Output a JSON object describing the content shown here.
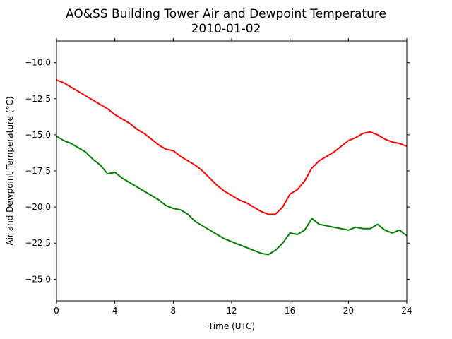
{
  "chart_data": {
    "type": "line",
    "title": "AO&SS Building Tower Air and Dewpoint Temperature",
    "subtitle": "2010-01-02",
    "xlabel": "Time (UTC)",
    "ylabel": "Air and Dewpoint Temperature (°C)",
    "xlim": [
      0,
      24
    ],
    "ylim": [
      -26.5,
      -8.5
    ],
    "xticks": [
      0,
      4,
      8,
      12,
      16,
      20,
      24
    ],
    "xtick_labels": [
      "0",
      "4",
      "8",
      "12",
      "16",
      "20",
      "24"
    ],
    "yticks": [
      -10.0,
      -12.5,
      -15.0,
      -17.5,
      -20.0,
      -22.5,
      -25.0
    ],
    "ytick_labels": [
      "−10.0",
      "−12.5",
      "−15.0",
      "−17.5",
      "−20.0",
      "−22.5",
      "−25.0"
    ],
    "grid": false,
    "series": [
      {
        "color": "#ff0000",
        "x": [
          0,
          0.5,
          1,
          1.5,
          2,
          2.5,
          3,
          3.5,
          4,
          4.5,
          5,
          5.5,
          6,
          6.5,
          7,
          7.5,
          8,
          8.5,
          9,
          9.5,
          10,
          10.5,
          11,
          11.5,
          12,
          12.5,
          13,
          13.5,
          14,
          14.5,
          15,
          15.5,
          16,
          16.5,
          17,
          17.5,
          18,
          18.5,
          19,
          19.5,
          20,
          20.5,
          21,
          21.5,
          22,
          22.5,
          23,
          23.5,
          24
        ],
        "values": [
          -11.2,
          -11.4,
          -11.7,
          -12.0,
          -12.3,
          -12.6,
          -12.9,
          -13.2,
          -13.6,
          -13.9,
          -14.2,
          -14.6,
          -14.9,
          -15.3,
          -15.7,
          -16.0,
          -16.1,
          -16.5,
          -16.8,
          -17.1,
          -17.5,
          -18.0,
          -18.5,
          -18.9,
          -19.2,
          -19.5,
          -19.7,
          -20.0,
          -20.3,
          -20.5,
          -20.5,
          -20.0,
          -19.1,
          -18.8,
          -18.2,
          -17.3,
          -16.8,
          -16.5,
          -16.2,
          -15.8,
          -15.4,
          -15.2,
          -14.9,
          -14.8,
          -15.0,
          -15.3,
          -15.5,
          -15.6,
          -15.8
        ]
      },
      {
        "color": "#008000",
        "x": [
          0,
          0.5,
          1,
          1.5,
          2,
          2.5,
          3,
          3.5,
          4,
          4.5,
          5,
          5.5,
          6,
          6.5,
          7,
          7.5,
          8,
          8.5,
          9,
          9.5,
          10,
          10.5,
          11,
          11.5,
          12,
          12.5,
          13,
          13.5,
          14,
          14.5,
          15,
          15.5,
          16,
          16.5,
          17,
          17.5,
          18,
          18.5,
          19,
          19.5,
          20,
          20.5,
          21,
          21.5,
          22,
          22.5,
          23,
          23.5,
          24
        ],
        "values": [
          -15.1,
          -15.4,
          -15.6,
          -15.9,
          -16.2,
          -16.7,
          -17.1,
          -17.7,
          -17.6,
          -18.0,
          -18.3,
          -18.6,
          -18.9,
          -19.2,
          -19.5,
          -19.9,
          -20.1,
          -20.2,
          -20.5,
          -21.0,
          -21.3,
          -21.6,
          -21.9,
          -22.2,
          -22.4,
          -22.6,
          -22.8,
          -23.0,
          -23.2,
          -23.3,
          -23.0,
          -22.5,
          -21.8,
          -21.9,
          -21.6,
          -20.8,
          -21.2,
          -21.3,
          -21.4,
          -21.5,
          -21.6,
          -21.4,
          -21.5,
          -21.5,
          -21.2,
          -21.6,
          -21.8,
          -21.6,
          -22.0
        ]
      }
    ]
  }
}
